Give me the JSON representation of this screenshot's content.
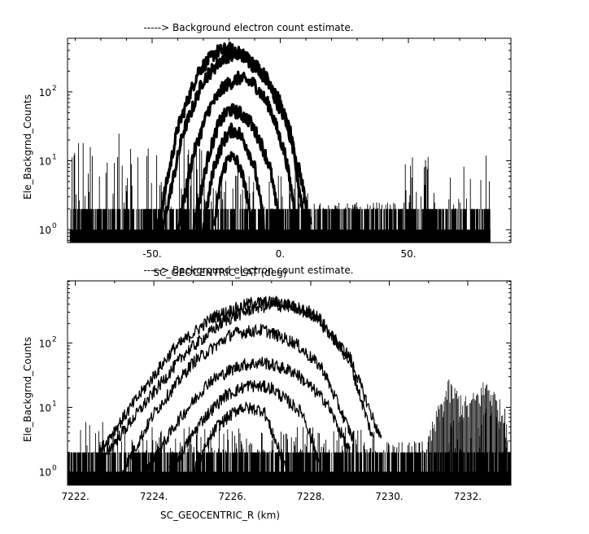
{
  "chart_data": [
    {
      "type": "line",
      "title": "-----> Background electron count estimate.",
      "xlabel": "SC_GEOCENTRIC_LAT (deg)",
      "ylabel": "Ele_Backgrnd_Counts",
      "xlim": [
        -83,
        90
      ],
      "ylim": [
        0.65,
        600
      ],
      "yscale": "log",
      "xticks": [
        {
          "value": -50,
          "label": "-50."
        },
        {
          "value": 0,
          "label": "0."
        },
        {
          "value": 50,
          "label": "50."
        }
      ],
      "yticks": [
        {
          "value": 1,
          "base": "10",
          "exp": "0"
        },
        {
          "value": 10,
          "base": "10",
          "exp": "1"
        },
        {
          "value": 100,
          "base": "10",
          "exp": "2"
        }
      ],
      "grid": false,
      "noise_floor": {
        "x_range": [
          -82,
          82
        ],
        "levels": [
          1,
          2
        ],
        "segments": [
          {
            "x": [
              -82,
              -30
            ],
            "max": 25
          },
          {
            "x": [
              -30,
              12
            ],
            "max": 8
          },
          {
            "x": [
              12,
              48
            ],
            "max": 2.5
          },
          {
            "x": [
              48,
              82
            ],
            "max": 14
          }
        ]
      },
      "series": [
        {
          "x": [
            -48,
            -40,
            -32,
            -25,
            -20,
            -14,
            -6,
            2,
            8,
            12
          ],
          "values": [
            1,
            30,
            200,
            380,
            420,
            330,
            160,
            40,
            6,
            1
          ]
        },
        {
          "x": [
            -46,
            -38,
            -30,
            -22,
            -16,
            -10,
            -2,
            4,
            10
          ],
          "values": [
            1,
            25,
            150,
            320,
            370,
            260,
            110,
            25,
            1
          ]
        },
        {
          "x": [
            -40,
            -34,
            -28,
            -22,
            -16,
            -10,
            -4,
            2,
            7
          ],
          "values": [
            1,
            12,
            55,
            120,
            160,
            130,
            60,
            12,
            1
          ]
        },
        {
          "x": [
            -34,
            -28,
            -24,
            -20,
            -16,
            -12,
            -8,
            -4,
            0
          ],
          "values": [
            1,
            12,
            35,
            55,
            50,
            38,
            20,
            8,
            1
          ]
        },
        {
          "x": [
            -30,
            -26,
            -22,
            -19,
            -16,
            -13,
            -10,
            -6
          ],
          "values": [
            1,
            8,
            20,
            28,
            25,
            16,
            8,
            1
          ]
        },
        {
          "x": [
            -26,
            -23,
            -20,
            -17,
            -14,
            -11
          ],
          "values": [
            1,
            6,
            12,
            10,
            5,
            1
          ]
        }
      ]
    },
    {
      "type": "line",
      "title": "-----> Background electron count estimate.",
      "xlabel": "SC_GEOCENTRIC_R (km)",
      "ylabel": "Ele_Backgrnd_Counts",
      "xlim": [
        7221.8,
        7233.1
      ],
      "ylim": [
        0.62,
        920
      ],
      "yscale": "log",
      "xticks": [
        {
          "value": 7222,
          "label": "7222."
        },
        {
          "value": 7224,
          "label": "7224."
        },
        {
          "value": 7226,
          "label": "7226."
        },
        {
          "value": 7228,
          "label": "7228."
        },
        {
          "value": 7230,
          "label": "7230."
        },
        {
          "value": 7232,
          "label": "7232."
        }
      ],
      "yticks": [
        {
          "value": 1,
          "base": "10",
          "exp": "0"
        },
        {
          "value": 10,
          "base": "10",
          "exp": "1"
        },
        {
          "value": 100,
          "base": "10",
          "exp": "2"
        }
      ],
      "grid": false,
      "noise_floor": {
        "x_range": [
          7221.8,
          7233.1
        ],
        "levels": [
          1,
          2
        ],
        "segments": [
          {
            "x": [
              7221.8,
              7223.5
            ],
            "max": 6
          },
          {
            "x": [
              7223.5,
              7229.7
            ],
            "max": 5
          },
          {
            "x": [
              7229.7,
              7231
            ],
            "max": 3
          },
          {
            "x": [
              7231,
              7233.1
            ],
            "max": 10
          }
        ]
      },
      "bumps": [
        {
          "x": [
            7231.0,
            7231.5,
            7232.0,
            7232.5,
            7233.0
          ],
          "values": [
            3,
            20,
            10,
            22,
            6
          ]
        }
      ],
      "series": [
        {
          "x": [
            7222.6,
            7223.5,
            7224.5,
            7225.5,
            7226.5,
            7227.2,
            7228.0,
            7229.0,
            7229.8
          ],
          "values": [
            2,
            12,
            80,
            250,
            420,
            430,
            300,
            60,
            3
          ]
        },
        {
          "x": [
            7222.8,
            7223.8,
            7224.8,
            7225.8,
            7226.6,
            7227.4,
            7228.2,
            7229.0,
            7229.6
          ],
          "values": [
            2,
            12,
            70,
            220,
            360,
            380,
            250,
            50,
            3
          ]
        },
        {
          "x": [
            7223.2,
            7224.0,
            7225.0,
            7226.0,
            7226.8,
            7227.6,
            7228.3,
            7229.1
          ],
          "values": [
            1,
            8,
            50,
            140,
            160,
            100,
            40,
            3
          ]
        },
        {
          "x": [
            7223.8,
            7224.6,
            7225.4,
            7226.2,
            7226.8,
            7227.6,
            7228.4,
            7229.0
          ],
          "values": [
            1,
            6,
            25,
            45,
            50,
            35,
            12,
            2
          ]
        },
        {
          "x": [
            7224.4,
            7225.2,
            7225.8,
            7226.4,
            7227.0,
            7227.8,
            7228.3
          ],
          "values": [
            1,
            6,
            15,
            22,
            20,
            8,
            1
          ]
        },
        {
          "x": [
            7225.0,
            7225.6,
            7226.2,
            7226.8,
            7227.4
          ],
          "values": [
            1,
            5,
            10,
            9,
            1
          ]
        }
      ]
    }
  ]
}
